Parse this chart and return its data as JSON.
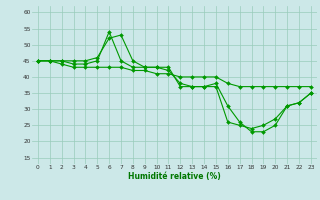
{
  "xlabel": "Humidité relative (%)",
  "background_color": "#cce8e8",
  "grid_color": "#99ccbb",
  "line_color": "#009900",
  "xlim_min": -0.5,
  "xlim_max": 23.5,
  "ylim_min": 13,
  "ylim_max": 62,
  "yticks": [
    15,
    20,
    25,
    30,
    35,
    40,
    45,
    50,
    55,
    60
  ],
  "xticks": [
    0,
    1,
    2,
    3,
    4,
    5,
    6,
    7,
    8,
    9,
    10,
    11,
    12,
    13,
    14,
    15,
    16,
    17,
    18,
    19,
    20,
    21,
    22,
    23
  ],
  "line1_x": [
    0,
    1,
    2,
    3,
    4,
    5,
    6,
    7,
    8,
    9,
    10,
    11,
    12,
    13,
    14,
    15,
    16,
    17,
    18,
    19,
    20,
    21,
    22,
    23
  ],
  "line1_y": [
    45,
    45,
    45,
    45,
    45,
    46,
    52,
    53,
    45,
    43,
    43,
    43,
    37,
    37,
    37,
    37,
    26,
    25,
    24,
    25,
    27,
    31,
    32,
    35
  ],
  "line2_x": [
    0,
    1,
    2,
    3,
    4,
    5,
    6,
    7,
    8,
    9,
    10,
    11,
    12,
    13,
    14,
    15,
    16,
    17,
    18,
    19,
    20,
    21,
    22,
    23
  ],
  "line2_y": [
    45,
    45,
    45,
    44,
    44,
    45,
    54,
    45,
    43,
    43,
    43,
    42,
    38,
    37,
    37,
    38,
    31,
    26,
    23,
    23,
    25,
    31,
    32,
    35
  ],
  "line3_x": [
    0,
    1,
    2,
    3,
    4,
    5,
    6,
    7,
    8,
    9,
    10,
    11,
    12,
    13,
    14,
    15,
    16,
    17,
    18,
    19,
    20,
    21,
    22,
    23
  ],
  "line3_y": [
    45,
    45,
    44,
    43,
    43,
    43,
    43,
    43,
    42,
    42,
    41,
    41,
    40,
    40,
    40,
    40,
    38,
    37,
    37,
    37,
    37,
    37,
    37,
    37
  ],
  "xlabel_fontsize": 5.5,
  "xlabel_color": "#007700",
  "tick_fontsize": 4.2,
  "linewidth": 0.8,
  "markersize": 2.0
}
